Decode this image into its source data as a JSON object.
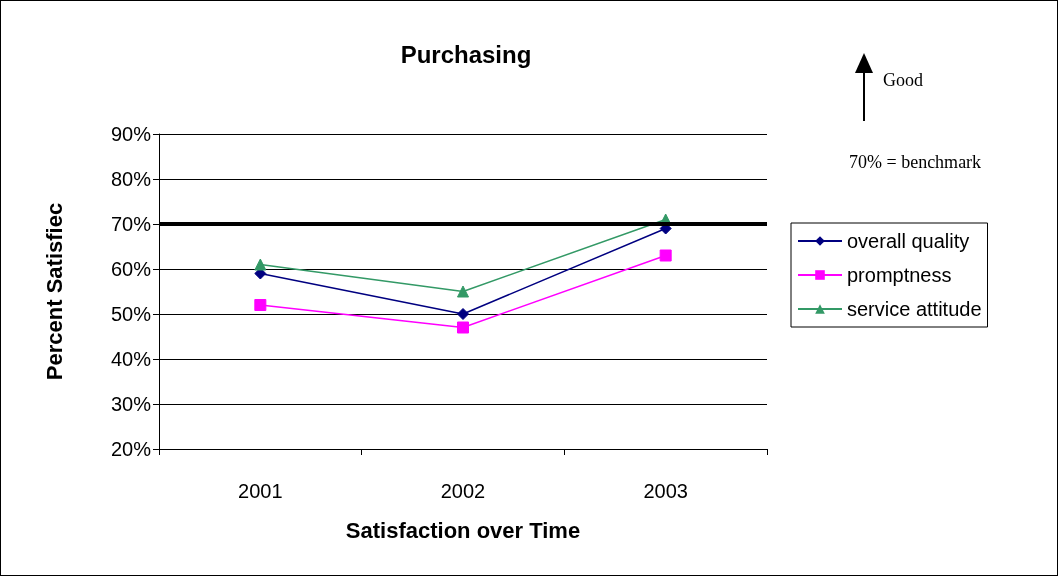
{
  "chart_data": {
    "type": "line",
    "title": "Purchasing",
    "xlabel": "Satisfaction over Time",
    "ylabel": "Percent Satisfiec",
    "categories": [
      "2001",
      "2002",
      "2003"
    ],
    "series": [
      {
        "name": "overall quality",
        "color": "#000080",
        "marker": "diamond",
        "values": [
          59,
          50,
          69
        ]
      },
      {
        "name": "promptness",
        "color": "#ff00ff",
        "marker": "square",
        "values": [
          52,
          47,
          63
        ]
      },
      {
        "name": "service attitude",
        "color": "#339966",
        "marker": "triangle",
        "values": [
          61,
          55,
          71
        ]
      }
    ],
    "ylim": [
      20,
      90
    ],
    "yticks": [
      {
        "value": 20,
        "label": "20%"
      },
      {
        "value": 30,
        "label": "30%"
      },
      {
        "value": 40,
        "label": "40%"
      },
      {
        "value": 50,
        "label": "50%"
      },
      {
        "value": 60,
        "label": "60%"
      },
      {
        "value": 70,
        "label": "70%"
      },
      {
        "value": 80,
        "label": "80%"
      },
      {
        "value": 90,
        "label": "90%"
      }
    ],
    "ref_lines": [
      {
        "axis": "y",
        "value": 70,
        "label": null,
        "color": "#000000",
        "line_style": "solid"
      }
    ],
    "annotations": [
      "Good",
      "70% = benchmark"
    ],
    "grid": "y",
    "legend": "right",
    "line_style": "solid"
  }
}
